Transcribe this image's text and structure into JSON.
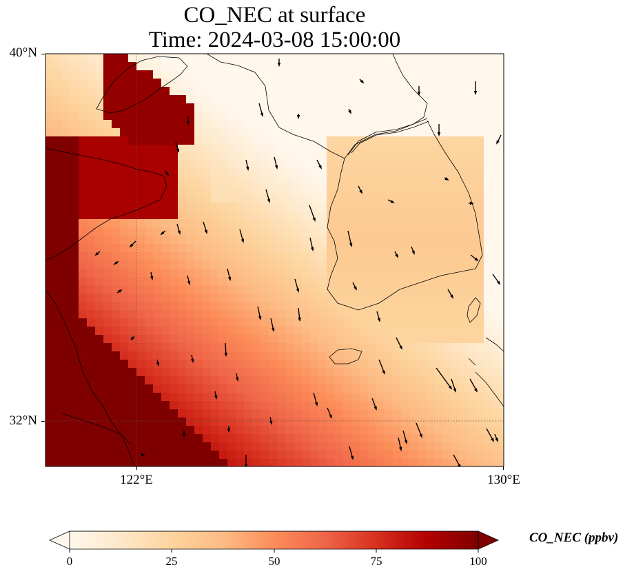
{
  "title": {
    "line1": "CO_NEC at surface",
    "line2": "Time: 2024-03-08 15:00:00"
  },
  "map": {
    "extent": {
      "lon_min": 120,
      "lon_max": 130,
      "lat_min": 31,
      "lat_max": 40
    },
    "lat_ticks": [
      {
        "value": 40,
        "label": "40°N"
      },
      {
        "value": 32,
        "label": "32°N"
      }
    ],
    "lon_ticks": [
      {
        "value": 122,
        "label": "122°E"
      },
      {
        "value": 130,
        "label": "130°E"
      }
    ],
    "gridlines": {
      "style": "dotted",
      "lon": [
        122
      ],
      "lat": [
        32
      ]
    },
    "field": {
      "variable": "CO_NEC",
      "units": "ppbv",
      "description_values": "high concentrations (~100 ppbv) over the west and southwest; low values (~5-20 ppbv) in the north-east; moderate (~20-40 ppbv) over the peninsula"
    }
  },
  "colorbar": {
    "label": "CO_NEC (ppbv)",
    "min": 0,
    "max": 100,
    "ticks": [
      "0",
      "25",
      "50",
      "75",
      "100"
    ],
    "colormap": "OrRd",
    "colors": [
      "#fff7ec",
      "#fee8c8",
      "#fdd49e",
      "#fdbb84",
      "#fc8d59",
      "#ef6548",
      "#d7301f",
      "#b30000",
      "#7f0000"
    ],
    "extend": "both"
  }
}
